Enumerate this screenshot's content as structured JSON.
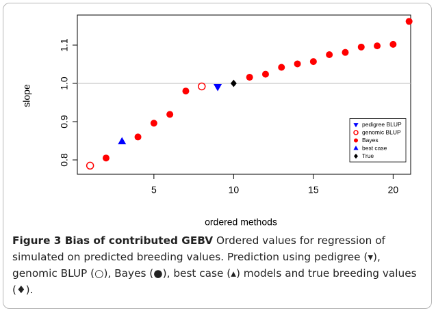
{
  "chart_data": {
    "type": "scatter",
    "xlabel": "ordered methods",
    "ylabel": "slope",
    "xlim": [
      0.2,
      21.1
    ],
    "ylim": [
      0.7625,
      1.1786
    ],
    "xticks": [
      5,
      10,
      15,
      20
    ],
    "yticks": [
      0.8,
      0.9,
      {
        "value": 1,
        "label": "1.0"
      },
      1.1
    ],
    "hline": 1,
    "legend": "bottom-right",
    "series": [
      {
        "name": "pedigree BLUP",
        "color": "#0000ff",
        "marker": "triangle-down",
        "x": [
          9
        ],
        "values": [
          0.991
        ]
      },
      {
        "name": "genomic BLUP",
        "color": "#ff0000",
        "marker": "circle-open",
        "x": [
          1,
          8
        ],
        "values": [
          0.785,
          0.992
        ]
      },
      {
        "name": "Bayes",
        "color": "#ff0000",
        "marker": "circle",
        "x": [
          2,
          4,
          5,
          6,
          7,
          11,
          12,
          13,
          14,
          15,
          16,
          17,
          18,
          19,
          20,
          21
        ],
        "values": [
          0.805,
          0.86,
          0.896,
          0.919,
          0.98,
          1.016,
          1.024,
          1.042,
          1.051,
          1.057,
          1.075,
          1.081,
          1.095,
          1.098,
          1.102,
          1.162
        ]
      },
      {
        "name": "best case",
        "color": "#0000ff",
        "marker": "triangle-up",
        "x": [
          3
        ],
        "values": [
          0.848
        ]
      },
      {
        "name": "True",
        "color": "#000000",
        "marker": "diamond",
        "x": [
          10
        ],
        "values": [
          1.0
        ]
      }
    ]
  },
  "caption": {
    "label": "Figure 3 Bias of contributed GEBV",
    "text": "Ordered values for regression of simulated on predicted breeding values. Prediction using pedigree (▾), genomic BLUP (○), Bayes (●), best case (▴) models and true breeding values (♦)."
  }
}
